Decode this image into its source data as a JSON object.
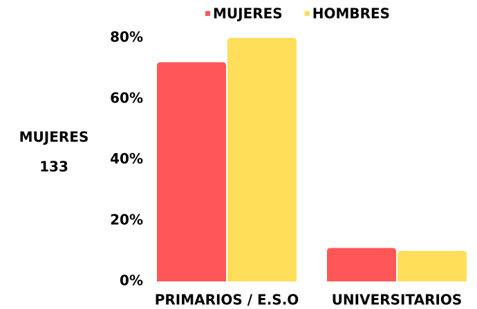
{
  "chart_data": {
    "type": "bar",
    "annotation": [
      "MUJERES",
      "133"
    ],
    "categories": [
      "PRIMARIOS / E.S.O",
      "UNIVERSITARIOS"
    ],
    "series": [
      {
        "name": "MUJERES",
        "color": "#ff5757",
        "values": [
          72,
          11
        ]
      },
      {
        "name": "HOMBRES",
        "color": "#ffde59",
        "values": [
          80,
          10
        ]
      }
    ],
    "ylim": [
      0,
      80
    ],
    "yticks": [
      {
        "value": 0,
        "label": "0%"
      },
      {
        "value": 20,
        "label": "20%"
      },
      {
        "value": 40,
        "label": "40%"
      },
      {
        "value": 60,
        "label": "60%"
      },
      {
        "value": 80,
        "label": "80%"
      }
    ],
    "grid": false,
    "legend": "top"
  }
}
